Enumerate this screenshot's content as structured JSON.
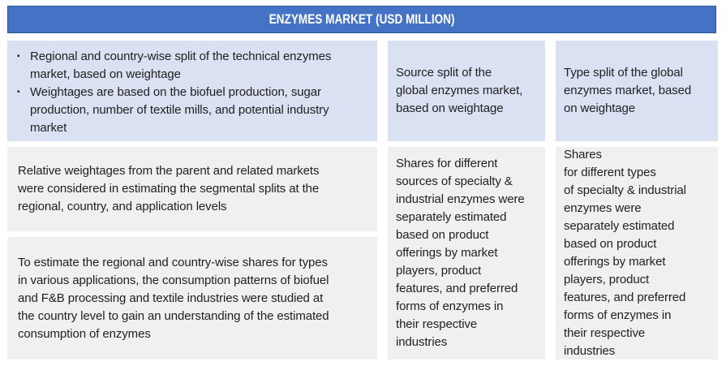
{
  "header": {
    "title": "ENZYMES MARKET (USD MILLION)"
  },
  "colors": {
    "header_bg": "#4472c4",
    "header_border": "#2e5693",
    "header_text": "#ffffff",
    "cell_blue": "#d9e1f2",
    "cell_gray": "#f0f0f0",
    "body_text": "#212121"
  },
  "cells": {
    "left_top": {
      "bullets": [
        "Regional and country-wise split of the technical enzymes\nmarket, based on weightage",
        "Weightages are based on the biofuel production, sugar\nproduction, number of textile mills, and potential industry\nmarket"
      ]
    },
    "mid_top": {
      "text": "Source split of the\nglobal enzymes market,\nbased on weightage"
    },
    "right_top": {
      "text": "Type split of the global\nenzymes market, based\non weightage"
    },
    "left_mid": {
      "text": "Relative weightages from the parent and related markets\nwere considered in estimating the segmental splits at the\nregional, country, and application levels"
    },
    "left_bottom": {
      "text": "To estimate the regional and country-wise shares for types\nin various applications, the consumption patterns of biofuel\nand F&B processing and textile industries were studied at\nthe country level to gain an understanding of the estimated\nconsumption of enzymes"
    },
    "mid_tall": {
      "text": "Shares for different\nsources of specialty &\nindustrial enzymes were\nseparately estimated\nbased on product\nofferings by market\nplayers, product\nfeatures, and preferred\nforms of enzymes in\ntheir respective\nindustries"
    },
    "right_tall": {
      "text": "Shares\nfor different types\nof specialty & industrial\nenzymes were\nseparately estimated\nbased on product\nofferings by market\nplayers, product\nfeatures, and preferred\nforms of enzymes in\ntheir respective\nindustries"
    }
  }
}
